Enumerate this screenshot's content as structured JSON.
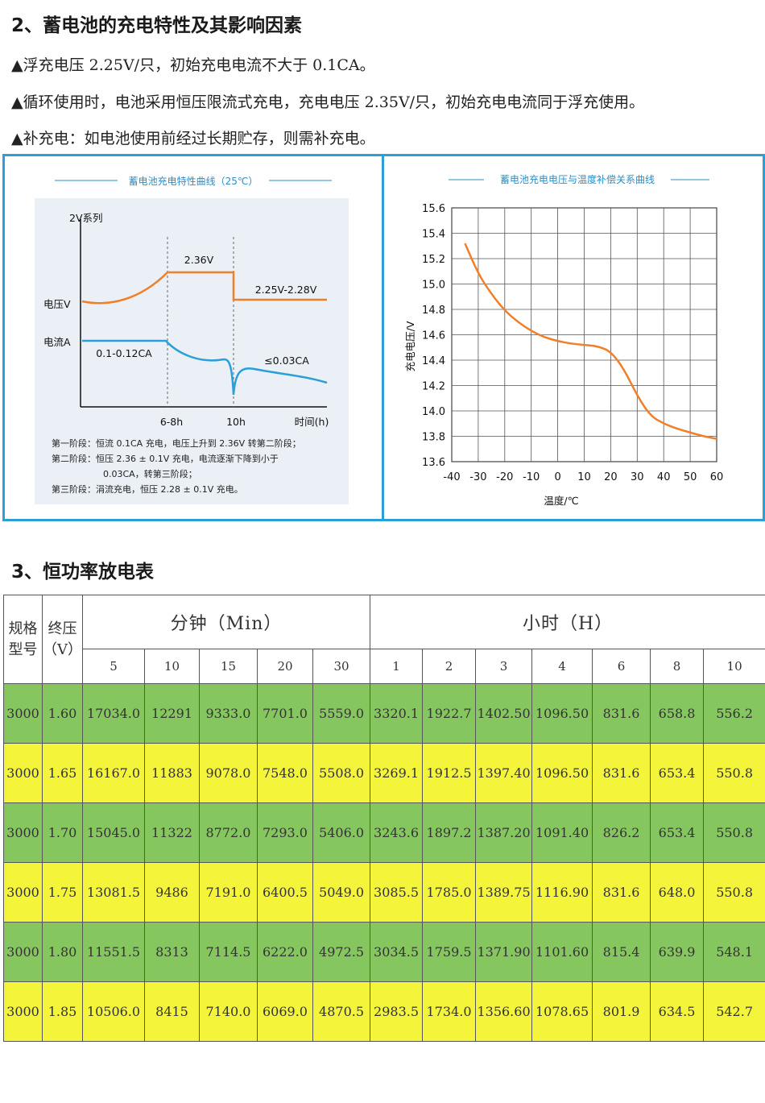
{
  "section2": {
    "title": "2、蓄电池的充电特性及其影响因素",
    "bullets": [
      "▲浮充电压 2.25V/只，初始充电电流不大于 0.1CA。",
      "▲循环使用时，电池采用恒压限流式充电，充电电压 2.35V/只，初始充电电流同于浮充使用。",
      "▲补充电：如电池使用前经过长期贮存，则需补充电。"
    ]
  },
  "chart_left": {
    "title": "蓄电池充电特性曲线（25℃）",
    "series_label": "2V系列",
    "voltage_axis": "电压V",
    "current_axis": "电流A",
    "annot_236": "2.36V",
    "annot_225": "2.25V-2.28V",
    "annot_current_initial": "0.1-0.12CA",
    "annot_current_final": "≤0.03CA",
    "tick_68": "6-8h",
    "tick_10": "10h",
    "time_axis": "时间(h)",
    "notes": [
      "第一阶段：恒流 0.1CA 充电，电压上升到 2.36V 转第二阶段；",
      "第二阶段：恒压 2.36 ± 0.1V 充电，电流逐渐下降到小于",
      "0.03CA，转第三阶段；",
      "第三阶段：涓流充电，恒压 2.28 ± 0.1V 充电。"
    ],
    "colors": {
      "voltage": "#f07f2a",
      "current": "#2a9fd8"
    }
  },
  "chart_data": {
    "type": "line",
    "title": "蓄电池充电电压与温度补偿关系曲线",
    "xlabel": "温度/℃",
    "ylabel": "充电电压/V",
    "xlim": [
      -40,
      60
    ],
    "ylim": [
      13.6,
      15.6
    ],
    "xticks": [
      -40,
      -30,
      -20,
      -10,
      0,
      10,
      20,
      30,
      40,
      50,
      60
    ],
    "yticks": [
      15.6,
      15.4,
      15.2,
      15.0,
      14.8,
      14.6,
      14.4,
      14.2,
      14.0,
      13.8,
      13.6
    ],
    "grid": true,
    "series": [
      {
        "color": "#f07f2a",
        "x": [
          -35,
          -30,
          -25,
          -20,
          -15,
          -10,
          -5,
          0,
          5,
          10,
          15,
          20,
          25,
          30,
          35,
          40,
          45,
          50,
          55,
          60
        ],
        "y": [
          15.32,
          15.08,
          14.92,
          14.79,
          14.7,
          14.63,
          14.58,
          14.55,
          14.53,
          14.52,
          14.51,
          14.47,
          14.33,
          14.12,
          13.96,
          13.9,
          13.86,
          13.83,
          13.8,
          13.78
        ]
      }
    ]
  },
  "section3": {
    "title": "3、恒功率放电表",
    "headers": {
      "model": "规格型号",
      "end_voltage": "终压（V）",
      "minutes_group": "分钟（Min）",
      "hours_group": "小时（H）",
      "minutes": [
        "5",
        "10",
        "15",
        "20",
        "30"
      ],
      "hours": [
        "1",
        "2",
        "3",
        "4",
        "6",
        "8",
        "10"
      ]
    },
    "rows": [
      [
        "3000",
        "1.60",
        "17034.0",
        "12291",
        "9333.0",
        "7701.0",
        "5559.0",
        "3320.1",
        "1922.7",
        "1402.50",
        "1096.50",
        "831.6",
        "658.8",
        "556.2"
      ],
      [
        "3000",
        "1.65",
        "16167.0",
        "11883",
        "9078.0",
        "7548.0",
        "5508.0",
        "3269.1",
        "1912.5",
        "1397.40",
        "1096.50",
        "831.6",
        "653.4",
        "550.8"
      ],
      [
        "3000",
        "1.70",
        "15045.0",
        "11322",
        "8772.0",
        "7293.0",
        "5406.0",
        "3243.6",
        "1897.2",
        "1387.20",
        "1091.40",
        "826.2",
        "653.4",
        "550.8"
      ],
      [
        "3000",
        "1.75",
        "13081.5",
        "9486",
        "7191.0",
        "6400.5",
        "5049.0",
        "3085.5",
        "1785.0",
        "1389.75",
        "1116.90",
        "831.6",
        "648.0",
        "550.8"
      ],
      [
        "3000",
        "1.80",
        "11551.5",
        "8313",
        "7114.5",
        "6222.0",
        "4972.5",
        "3034.5",
        "1759.5",
        "1371.90",
        "1101.60",
        "815.4",
        "639.9",
        "548.1"
      ],
      [
        "3000",
        "1.85",
        "10506.0",
        "8415",
        "7140.0",
        "6069.0",
        "4870.5",
        "2983.5",
        "1734.0",
        "1356.60",
        "1078.65",
        "801.9",
        "634.5",
        "542.7"
      ]
    ],
    "row_colors": [
      "#85c65f",
      "#f4f43a"
    ]
  }
}
